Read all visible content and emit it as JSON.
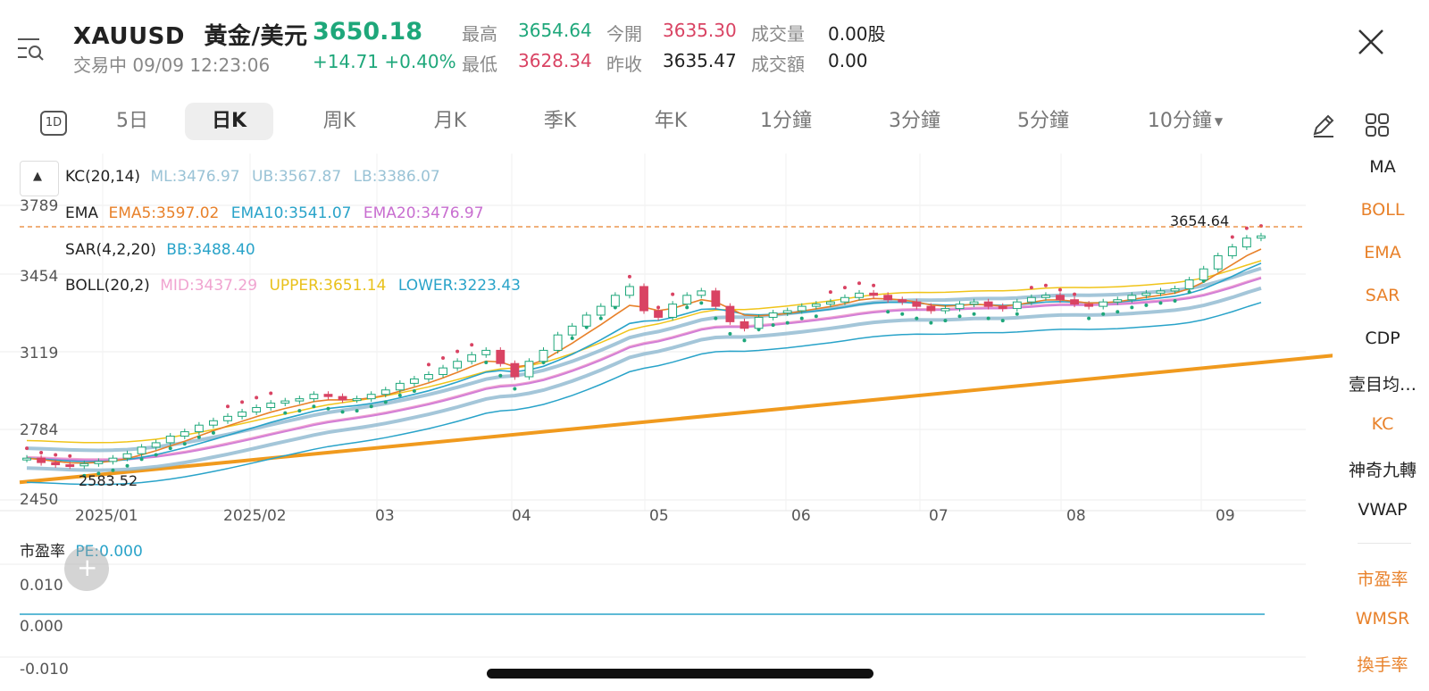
{
  "header": {
    "symbol": "XAUUSD",
    "name": "黃金/美元",
    "price": "3650.18",
    "status": "交易中 09/09 12:23:06",
    "change": "+14.71 +0.40%",
    "stats": [
      {
        "label": "最高",
        "value": "3654.64",
        "color": "#1ea77a"
      },
      {
        "label": "今開",
        "value": "3635.30",
        "color": "#d94363"
      },
      {
        "label": "成交量",
        "value": "0.00股",
        "color": "#222222"
      },
      {
        "label": "最低",
        "value": "3628.34",
        "color": "#d94363"
      },
      {
        "label": "昨收",
        "value": "3635.47",
        "color": "#222222"
      },
      {
        "label": "成交額",
        "value": "0.00",
        "color": "#222222"
      }
    ]
  },
  "toolbar": {
    "oned_icon_label": "1D",
    "periods": [
      "5日",
      "日K",
      "周K",
      "月K",
      "季K",
      "年K",
      "1分鐘",
      "3分鐘",
      "5分鐘",
      "10分鐘"
    ],
    "active_period": "日K"
  },
  "indicators": {
    "kc": {
      "name": "KC(20,14)",
      "ml": "ML:3476.97",
      "ub": "UB:3567.87",
      "lb": "LB:3386.07"
    },
    "ema": {
      "name": "EMA",
      "ema5": "EMA5:3597.02",
      "ema10": "EMA10:3541.07",
      "ema20": "EMA20:3476.97"
    },
    "sar": {
      "name": "SAR(4,2,20)",
      "bb": "BB:3488.40"
    },
    "boll": {
      "name": "BOLL(20,2)",
      "mid": "MID:3437.29",
      "upper": "UPPER:3651.14",
      "lower": "LOWER:3223.43"
    },
    "pe": {
      "name": "市盈率",
      "value": "PE:0.000"
    }
  },
  "sidebar": {
    "items": [
      {
        "label": "MA",
        "color": "#333333"
      },
      {
        "label": "BOLL",
        "color": "#e8812a"
      },
      {
        "label": "EMA",
        "color": "#e8812a"
      },
      {
        "label": "SAR",
        "color": "#e8812a"
      },
      {
        "label": "CDP",
        "color": "#333333"
      },
      {
        "label": "壹目均…",
        "color": "#333333"
      },
      {
        "label": "KC",
        "color": "#e8812a"
      },
      {
        "label": "神奇九轉",
        "color": "#333333"
      },
      {
        "label": "VWAP",
        "color": "#333333"
      }
    ],
    "sub_items": [
      {
        "label": "市盈率",
        "color": "#e8812a"
      },
      {
        "label": "WMSR",
        "color": "#e8812a"
      },
      {
        "label": "換手率",
        "color": "#e8812a"
      }
    ]
  },
  "chart_data": {
    "type": "candlestick",
    "y_ticks": [
      "3789",
      "3454",
      "3119",
      "2784",
      "2450"
    ],
    "x_ticks": [
      "2025/01",
      "2025/02",
      "03",
      "04",
      "05",
      "06",
      "07",
      "08",
      "09"
    ],
    "high_marker": "3654.64",
    "low_marker": "2583.52",
    "sub_y_ticks": [
      "0.010",
      "0.000",
      "-0.010"
    ],
    "ylim": [
      2450,
      3789
    ],
    "close_series": [
      2640,
      2620,
      2610,
      2605,
      2615,
      2625,
      2640,
      2660,
      2690,
      2710,
      2740,
      2760,
      2790,
      2810,
      2830,
      2850,
      2870,
      2890,
      2900,
      2910,
      2930,
      2920,
      2905,
      2910,
      2930,
      2950,
      2980,
      3000,
      3020,
      3050,
      3080,
      3110,
      3130,
      3070,
      3010,
      3080,
      3130,
      3200,
      3240,
      3290,
      3330,
      3380,
      3420,
      3310,
      3280,
      3340,
      3380,
      3400,
      3330,
      3260,
      3230,
      3280,
      3300,
      3310,
      3330,
      3340,
      3350,
      3370,
      3390,
      3380,
      3360,
      3350,
      3330,
      3310,
      3320,
      3340,
      3350,
      3330,
      3320,
      3350,
      3370,
      3380,
      3360,
      3340,
      3330,
      3350,
      3360,
      3380,
      3390,
      3400,
      3410,
      3450,
      3500,
      3560,
      3600,
      3640,
      3650
    ],
    "support_line": {
      "from": [
        0,
        2530
      ],
      "to": [
        1,
        3110
      ]
    },
    "colors": {
      "up": "#1ea77a",
      "down": "#d94363",
      "ema5": "#e8812a",
      "ema10": "#29a3c9",
      "ema20": "#d37fd6",
      "kc": "#8db8cf",
      "sar": "#1ea77a",
      "boll_upper": "#f0c419",
      "boll_mid": "#f0a4d0",
      "support": "#f09a1e",
      "high_line": "#e8812a",
      "pe": "#29a3c9"
    }
  }
}
